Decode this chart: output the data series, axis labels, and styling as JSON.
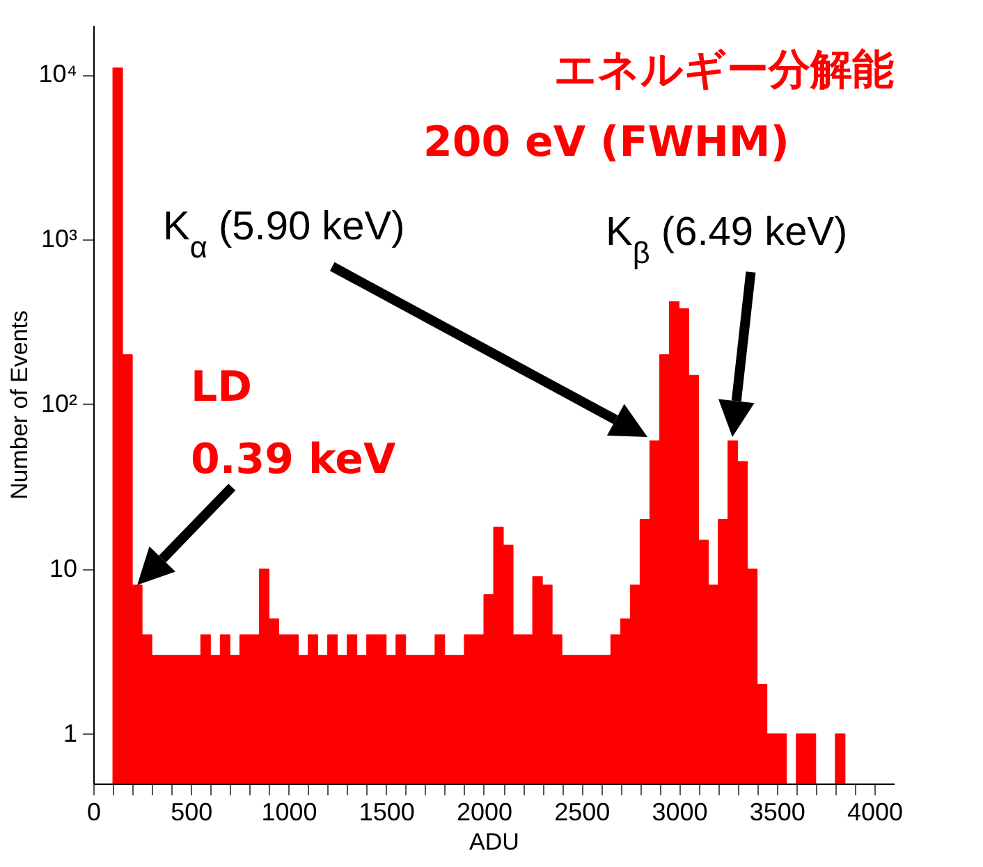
{
  "chart_data": {
    "type": "histogram",
    "xlabel": "ADU",
    "ylabel": "Number of Events",
    "bins": [
      100,
      150,
      200,
      250,
      300,
      350,
      400,
      450,
      500,
      550,
      600,
      650,
      700,
      750,
      800,
      850,
      900,
      950,
      1000,
      1050,
      1100,
      1150,
      1200,
      1250,
      1300,
      1350,
      1400,
      1450,
      1500,
      1550,
      1600,
      1650,
      1700,
      1750,
      1800,
      1850,
      1900,
      1950,
      2000,
      2050,
      2100,
      2150,
      2200,
      2250,
      2300,
      2350,
      2400,
      2450,
      2500,
      2550,
      2600,
      2650,
      2700,
      2750,
      2800,
      2850,
      2900,
      2950,
      3000,
      3050,
      3100,
      3150,
      3200,
      3250,
      3300,
      3350,
      3400,
      3450,
      3500,
      3550,
      3600,
      3650,
      3700,
      3800,
      3850
    ],
    "values": [
      11000,
      200,
      8,
      4,
      3,
      3,
      3,
      3,
      3,
      4,
      3,
      4,
      3,
      4,
      4,
      10,
      5,
      4,
      4,
      3,
      4,
      3,
      4,
      3,
      4,
      3,
      4,
      4,
      3,
      4,
      3,
      3,
      3,
      4,
      3,
      3,
      4,
      4,
      7,
      18,
      14,
      4,
      4,
      9,
      8,
      4,
      3,
      3,
      3,
      3,
      3,
      4,
      5,
      8,
      20,
      60,
      200,
      420,
      380,
      150,
      15,
      8,
      20,
      60,
      45,
      10,
      2,
      1,
      1,
      null,
      1,
      1,
      null,
      1
    ],
    "color": "#ff0000",
    "log": "y",
    "xlim": [
      0,
      4100
    ],
    "xticks": [
      0,
      {
        "value": 100,
        "label": null
      },
      {
        "value": 200,
        "label": null
      },
      {
        "value": 300,
        "label": null
      },
      {
        "value": 400,
        "label": null
      },
      500,
      {
        "value": 600,
        "label": null
      },
      {
        "value": 700,
        "label": null
      },
      {
        "value": 800,
        "label": null
      },
      {
        "value": 900,
        "label": null
      },
      1000,
      {
        "value": 1100,
        "label": null
      },
      {
        "value": 1200,
        "label": null
      },
      {
        "value": 1300,
        "label": null
      },
      {
        "value": 1400,
        "label": null
      },
      1500,
      {
        "value": 1600,
        "label": null
      },
      {
        "value": 1700,
        "label": null
      },
      {
        "value": 1800,
        "label": null
      },
      {
        "value": 1900,
        "label": null
      },
      2000,
      {
        "value": 2100,
        "label": null
      },
      {
        "value": 2200,
        "label": null
      },
      {
        "value": 2300,
        "label": null
      },
      {
        "value": 2400,
        "label": null
      },
      2500,
      {
        "value": 2600,
        "label": null
      },
      {
        "value": 2700,
        "label": null
      },
      {
        "value": 2800,
        "label": null
      },
      {
        "value": 2900,
        "label": null
      },
      3000,
      {
        "value": 3100,
        "label": null
      },
      {
        "value": 3200,
        "label": null
      },
      {
        "value": 3300,
        "label": null
      },
      {
        "value": 3400,
        "label": null
      },
      3500,
      {
        "value": 3600,
        "label": null
      },
      {
        "value": 3700,
        "label": null
      },
      {
        "value": 3800,
        "label": null
      },
      {
        "value": 3900,
        "label": null
      },
      4000
    ],
    "ylim": [
      0.5,
      20000
    ],
    "yticks": [
      1,
      10,
      {
        "value": 100,
        "label": "10²"
      },
      {
        "value": 1000,
        "label": "10³"
      },
      {
        "value": 10000,
        "label": "10⁴"
      }
    ],
    "grid": false,
    "annotations": [
      "エネルギー分解能",
      "200 eV (FWHM)",
      "K$_{α}$ (5.90 keV)",
      "K$_{β}$ (6.49 keV)",
      "LD",
      {
        "text": "0.39 keV",
        "x": 225,
        "y": 8
      }
    ]
  }
}
